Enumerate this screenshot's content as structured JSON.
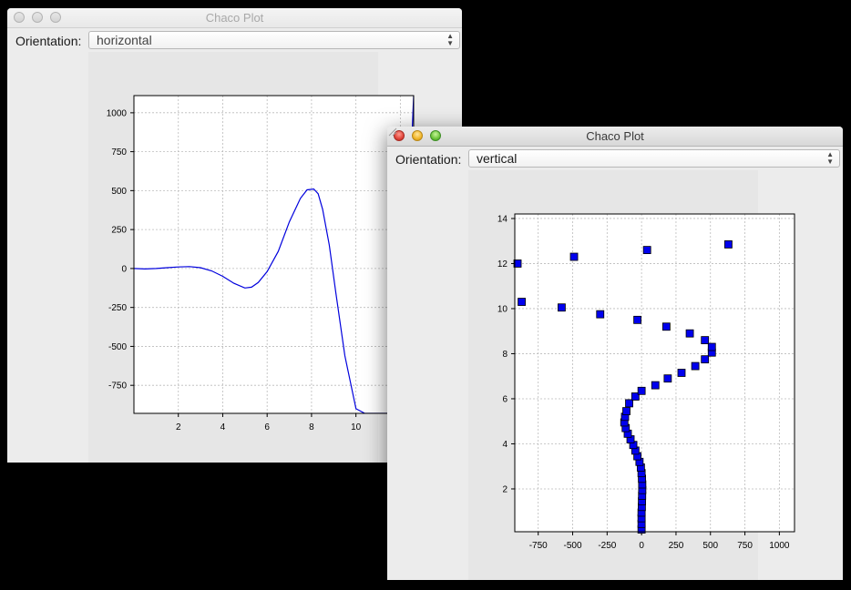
{
  "windows": [
    {
      "title": "Chaco Plot",
      "active": false,
      "orientation_label": "Orientation:",
      "orientation_value": "horizontal"
    },
    {
      "title": "Chaco Plot",
      "active": true,
      "orientation_label": "Orientation:",
      "orientation_value": "vertical"
    }
  ],
  "colors": {
    "line": "#0000dd",
    "marker_fill": "#0000ee",
    "marker_edge": "#000000",
    "grid": "#bbbbbb"
  },
  "chart_data": [
    {
      "type": "line",
      "orientation": "horizontal",
      "xlim": [
        0,
        12.6
      ],
      "ylim": [
        -930,
        1110
      ],
      "x_ticks": [
        "2",
        "4",
        "6",
        "8",
        "10",
        "12"
      ],
      "y_ticks": [
        "1000",
        "750",
        "500",
        "250",
        "0",
        "-250",
        "-500",
        "-750"
      ],
      "grid": true,
      "series": [
        {
          "x": [
            0,
            0.5,
            1,
            1.5,
            2,
            2.5,
            3,
            3.5,
            4,
            4.5,
            5,
            5.3,
            5.6,
            6,
            6.5,
            7,
            7.5,
            7.8,
            8.1,
            8.3,
            8.5,
            8.8,
            9.1,
            9.5,
            10,
            10.4,
            11.5,
            12,
            12.6
          ],
          "y": [
            0,
            -3,
            0,
            5,
            10,
            12,
            5,
            -15,
            -50,
            -95,
            -125,
            -120,
            -90,
            -20,
            110,
            300,
            450,
            505,
            510,
            480,
            380,
            150,
            -160,
            -560,
            -900,
            -930,
            -930,
            -930,
            1110
          ]
        }
      ]
    },
    {
      "type": "scatter",
      "orientation": "vertical",
      "xlim": [
        -920,
        1110
      ],
      "ylim": [
        0.1,
        14.2
      ],
      "x_ticks": [
        "-750",
        "-500",
        "-250",
        "0",
        "250",
        "500",
        "750",
        "1000"
      ],
      "y_ticks": [
        "14",
        "12",
        "10",
        "8",
        "6",
        "4",
        "2"
      ],
      "grid": true,
      "series": [
        {
          "points": [
            [
              0,
              0.2
            ],
            [
              0,
              0.45
            ],
            [
              0,
              0.7
            ],
            [
              0,
              0.95
            ],
            [
              2,
              1.2
            ],
            [
              3,
              1.45
            ],
            [
              4,
              1.7
            ],
            [
              5,
              1.95
            ],
            [
              5,
              2.2
            ],
            [
              3,
              2.45
            ],
            [
              0,
              2.7
            ],
            [
              -5,
              2.95
            ],
            [
              -15,
              3.2
            ],
            [
              -30,
              3.45
            ],
            [
              -45,
              3.7
            ],
            [
              -60,
              3.95
            ],
            [
              -80,
              4.2
            ],
            [
              -100,
              4.45
            ],
            [
              -115,
              4.7
            ],
            [
              -125,
              4.95
            ],
            [
              -120,
              5.2
            ],
            [
              -110,
              5.45
            ],
            [
              -90,
              5.8
            ],
            [
              -45,
              6.1
            ],
            [
              0,
              6.35
            ],
            [
              100,
              6.6
            ],
            [
              190,
              6.9
            ],
            [
              290,
              7.15
            ],
            [
              390,
              7.45
            ],
            [
              460,
              7.75
            ],
            [
              510,
              8.05
            ],
            [
              510,
              8.3
            ],
            [
              460,
              8.6
            ],
            [
              350,
              8.9
            ],
            [
              180,
              9.2
            ],
            [
              -30,
              9.5
            ],
            [
              -300,
              9.75
            ],
            [
              -580,
              10.05
            ],
            [
              -870,
              10.3
            ],
            [
              -900,
              12.0
            ],
            [
              -490,
              12.3
            ],
            [
              40,
              12.6
            ],
            [
              630,
              12.85
            ]
          ]
        }
      ]
    }
  ]
}
